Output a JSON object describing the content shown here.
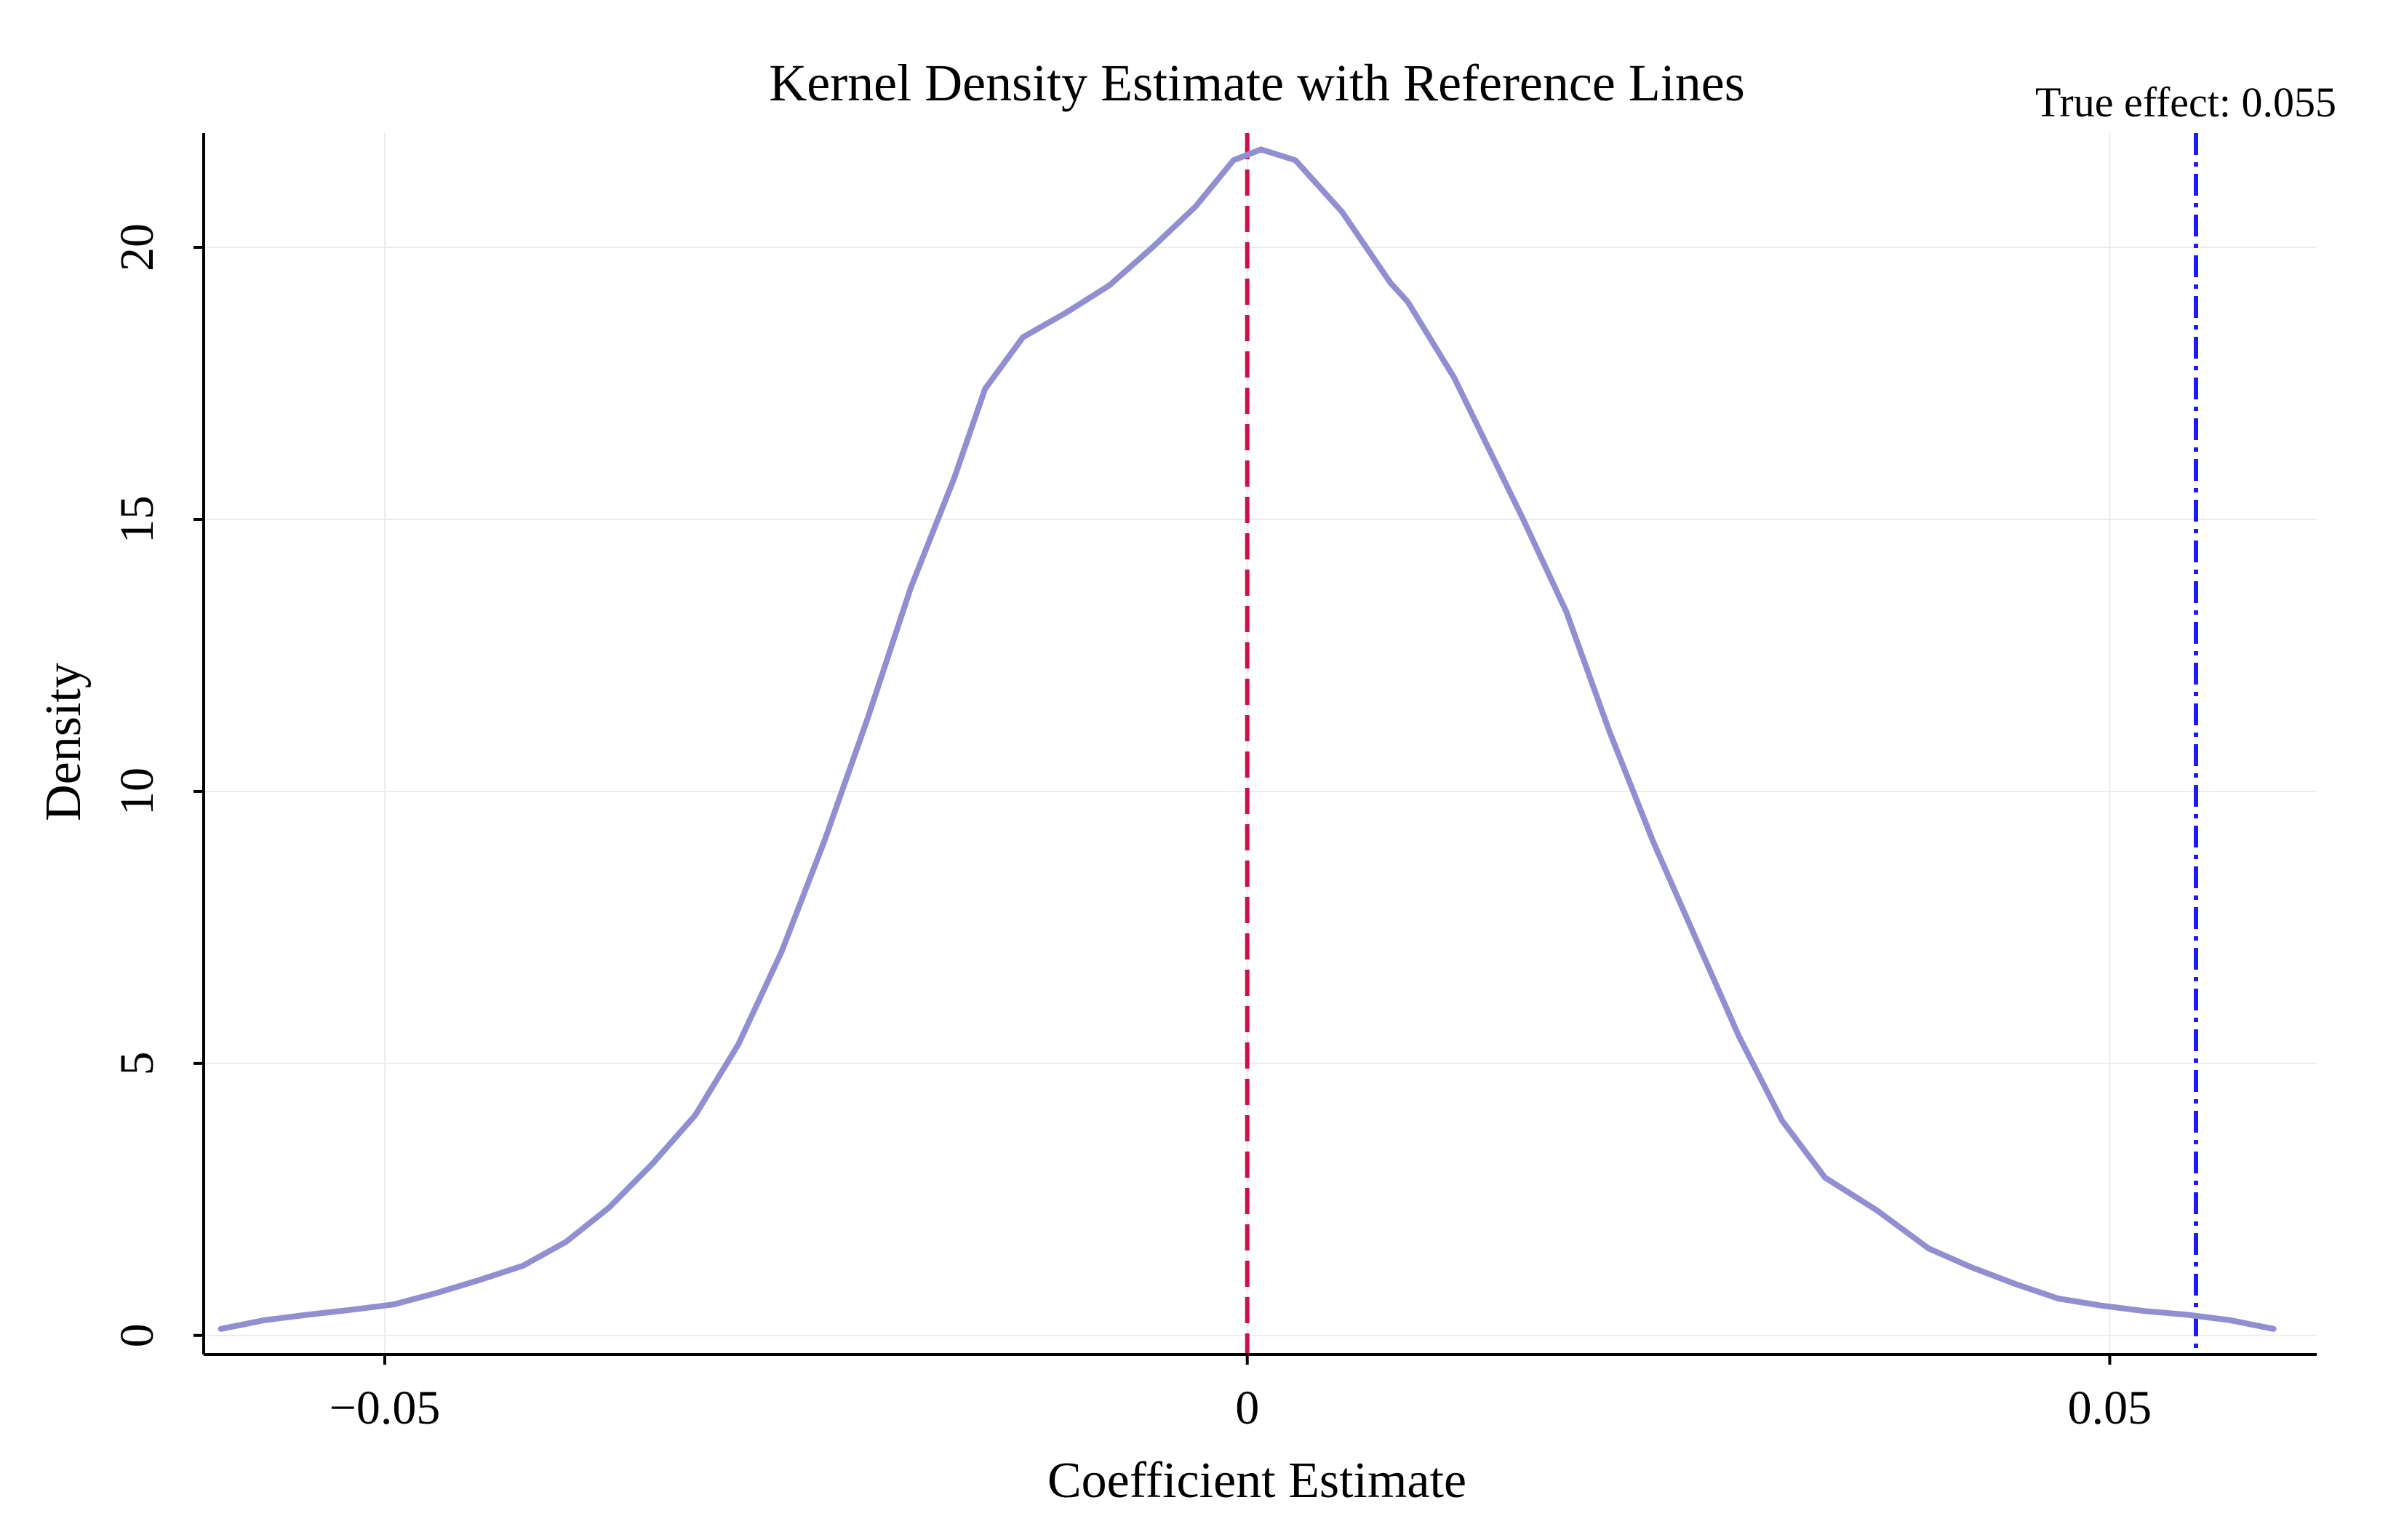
{
  "chart_data": {
    "type": "line",
    "title": "Kernel Density Estimate with Reference Lines",
    "xlabel": "Coefficient Estimate",
    "ylabel": "Density",
    "xlim": [
      -0.0605,
      0.062
    ],
    "ylim": [
      -0.35,
      22.1
    ],
    "x_ticks": [
      -0.05,
      0,
      0.05
    ],
    "x_tick_labels": [
      "−0.05",
      "0",
      "0.05"
    ],
    "y_ticks": [
      0,
      5,
      10,
      15,
      20
    ],
    "y_tick_labels": [
      "0",
      "5",
      "10",
      "15",
      "20"
    ],
    "grid": true,
    "series": [
      {
        "name": "Kernel density",
        "color": "#8f8fd2",
        "x": [
          -0.0595,
          -0.057,
          -0.0545,
          -0.052,
          -0.0495,
          -0.047,
          -0.0445,
          -0.042,
          -0.0395,
          -0.037,
          -0.0345,
          -0.032,
          -0.0295,
          -0.027,
          -0.0245,
          -0.022,
          -0.0195,
          -0.017,
          -0.0152,
          -0.013,
          -0.0105,
          -0.008,
          -0.0055,
          -0.003,
          -0.0008,
          0.0008,
          0.0028,
          0.0055,
          0.0083,
          0.0093,
          0.012,
          0.014,
          0.016,
          0.0185,
          0.021,
          0.0235,
          0.026,
          0.0285,
          0.031,
          0.0335,
          0.0365,
          0.0395,
          0.042,
          0.0445,
          0.047,
          0.0495,
          0.052,
          0.0545,
          0.057,
          0.0595
        ],
        "y": [
          0.12,
          0.28,
          0.38,
          0.47,
          0.57,
          0.78,
          1.02,
          1.28,
          1.72,
          2.35,
          3.15,
          4.05,
          5.35,
          7.05,
          9.1,
          11.35,
          13.75,
          15.75,
          17.4,
          18.35,
          18.8,
          19.3,
          20.0,
          20.75,
          21.6,
          21.8,
          21.6,
          20.65,
          19.35,
          19.0,
          17.6,
          16.3,
          15.0,
          13.3,
          11.1,
          9.1,
          7.3,
          5.5,
          3.95,
          2.9,
          2.3,
          1.6,
          1.25,
          0.95,
          0.68,
          0.55,
          0.45,
          0.38,
          0.28,
          0.12
        ]
      }
    ],
    "reference_lines": [
      {
        "name": "zero",
        "x": 0,
        "color": "#cc1144",
        "style": "dashed"
      },
      {
        "name": "true-effect",
        "x": 0.055,
        "color": "#1a1aff",
        "style": "dashdot",
        "label": "True effect: 0.055"
      }
    ]
  }
}
